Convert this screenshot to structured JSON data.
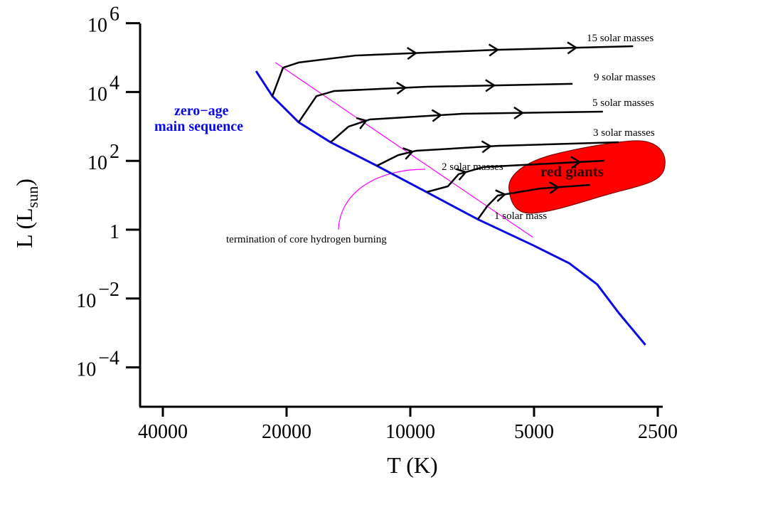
{
  "chart_data": {
    "type": "line",
    "title": "",
    "xlabel": "T (K)",
    "ylabel": "L (L",
    "ylabel_sub": "sun",
    "ylabel_close": ")",
    "x_scale": "log",
    "x_reversed": true,
    "y_scale": "log",
    "xlim": [
      45000,
      2500
    ],
    "ylim": [
      1e-05,
      1000000
    ],
    "grid": false,
    "x_ticks": [
      {
        "value": 40000,
        "label": "40000"
      },
      {
        "value": 20000,
        "label": "20000"
      },
      {
        "value": 10000,
        "label": "10000"
      },
      {
        "value": 5000,
        "label": "5000"
      },
      {
        "value": 2500,
        "label": "2500"
      }
    ],
    "y_ticks": [
      {
        "value": 1000000,
        "base": "10",
        "exp": "6"
      },
      {
        "value": 10000,
        "base": "10",
        "exp": "4"
      },
      {
        "value": 100,
        "base": "10",
        "exp": "2"
      },
      {
        "value": 1,
        "base": "1",
        "exp": ""
      },
      {
        "value": 0.01,
        "base": "10",
        "exp": "−2"
      },
      {
        "value": 0.0001,
        "base": "10",
        "exp": "−4"
      }
    ],
    "main_sequence": {
      "label_line1": "zero−age",
      "label_line2": "main sequence",
      "color": "#0a0ae6",
      "points": [
        [
          23730,
          40700
        ],
        [
          21660,
          7600
        ],
        [
          18690,
          1320
        ],
        [
          15630,
          347
        ],
        [
          12060,
          72
        ],
        [
          9130,
          12.4
        ],
        [
          6850,
          2.0
        ],
        [
          5020,
          0.35
        ],
        [
          4110,
          0.107
        ],
        [
          3510,
          0.0257
        ],
        [
          3110,
          0.0038
        ],
        [
          2680,
          0.00045
        ]
      ]
    },
    "tracks": [
      {
        "name": "15 solar masses",
        "points": [
          [
            21660,
            7600
          ],
          [
            20400,
            51000
          ],
          [
            18690,
            72000
          ],
          [
            13590,
            115000
          ],
          [
            6130,
            169000
          ],
          [
            2870,
            214000
          ]
        ],
        "arrows_T": [
          9690,
          6130,
          3950
        ]
      },
      {
        "name": "9 solar masses",
        "points": [
          [
            18690,
            1320
          ],
          [
            16920,
            7600
          ],
          [
            15320,
            10700
          ],
          [
            9130,
            14200
          ],
          [
            4030,
            17300
          ]
        ],
        "arrows_T": [
          10280,
          6250
        ]
      },
      {
        "name": "5 solar masses",
        "points": [
          [
            15630,
            347
          ],
          [
            14140,
            990
          ],
          [
            12550,
            1590
          ],
          [
            7480,
            2330
          ],
          [
            3400,
            2690
          ]
        ],
        "arrows_T": [
          12800,
          8430,
          5330
        ]
      },
      {
        "name": "3 solar masses",
        "points": [
          [
            12060,
            72
          ],
          [
            10700,
            147
          ],
          [
            9690,
            196
          ],
          [
            6130,
            273
          ],
          [
            3110,
            347
          ]
        ],
        "arrows_T": [
          9880,
          6380
        ]
      },
      {
        "name": "2 solar masses",
        "points": [
          [
            9130,
            12.4
          ],
          [
            8100,
            18.2
          ],
          [
            7630,
            41
          ],
          [
            6640,
            66
          ],
          [
            3370,
            101
          ]
        ],
        "arrows_T": [
          7330,
          3870
        ]
      },
      {
        "name": "1 solar mass",
        "points": [
          [
            6850,
            2.0
          ],
          [
            6500,
            4.8
          ],
          [
            6130,
            9.8
          ],
          [
            4820,
            15.8
          ],
          [
            3650,
            20
          ]
        ],
        "arrows_T": [
          5890,
          4370
        ]
      }
    ],
    "termination_line": {
      "label": "termination of core hydrogen burning",
      "color": "#ff00ff",
      "points": [
        [
          21300,
          72000
        ],
        [
          5030,
          0.6
        ]
      ]
    },
    "red_giants": {
      "label": "red giants",
      "color": "#ff0000"
    }
  }
}
